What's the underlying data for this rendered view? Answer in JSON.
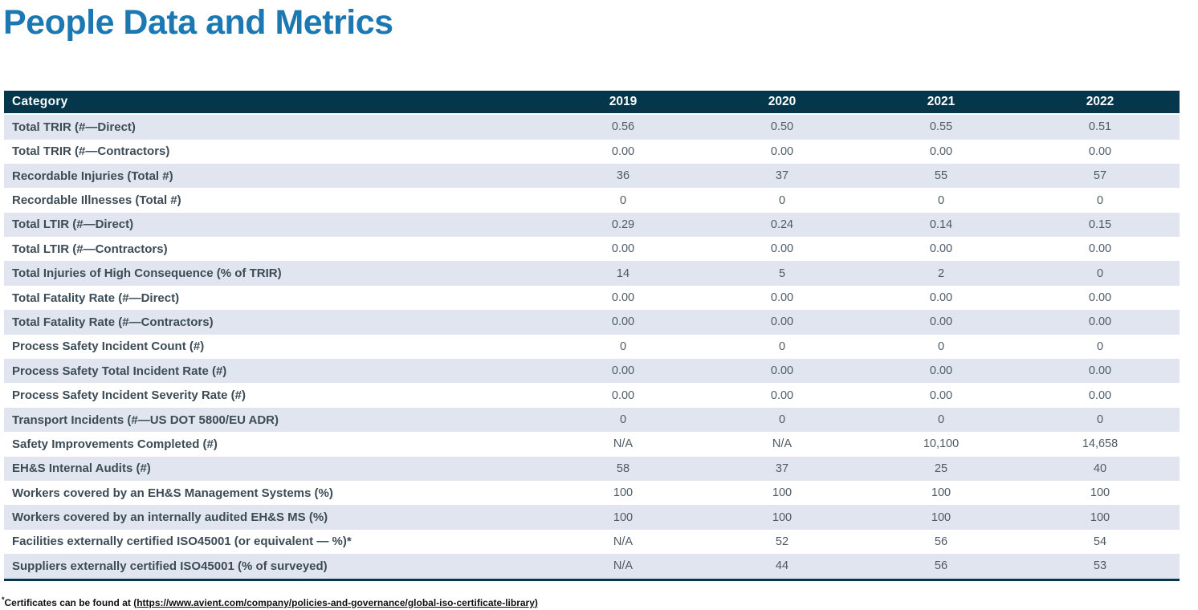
{
  "page": {
    "title": "People Data and Metrics"
  },
  "colors": {
    "title_blue": "#1b78b2",
    "header_bg": "#04364c",
    "row_alt_bg": "#e1e5ef",
    "row_bg": "#ffffff",
    "category_text": "#3c4c57",
    "value_text": "#4e5a64",
    "header_text": "#ffffff",
    "footnote_text": "#111111"
  },
  "table": {
    "columns": [
      "Category",
      "2019",
      "2020",
      "2021",
      "2022"
    ],
    "rows": [
      {
        "category": "Total TRIR (#—Direct)",
        "values": [
          "0.56",
          "0.50",
          "0.55",
          "0.51"
        ]
      },
      {
        "category": "Total TRIR (#—Contractors)",
        "values": [
          "0.00",
          "0.00",
          "0.00",
          "0.00"
        ]
      },
      {
        "category": "Recordable Injuries (Total #)",
        "values": [
          "36",
          "37",
          "55",
          "57"
        ]
      },
      {
        "category": "Recordable Illnesses (Total #)",
        "values": [
          "0",
          "0",
          "0",
          "0"
        ]
      },
      {
        "category": "Total LTIR (#—Direct)",
        "values": [
          "0.29",
          "0.24",
          "0.14",
          "0.15"
        ]
      },
      {
        "category": "Total LTIR (#—Contractors)",
        "values": [
          "0.00",
          "0.00",
          "0.00",
          "0.00"
        ]
      },
      {
        "category": "Total Injuries of High Consequence (% of TRIR)",
        "values": [
          "14",
          "5",
          "2",
          "0"
        ]
      },
      {
        "category": "Total Fatality Rate (#—Direct)",
        "values": [
          "0.00",
          "0.00",
          "0.00",
          "0.00"
        ]
      },
      {
        "category": "Total Fatality Rate (#—Contractors)",
        "values": [
          "0.00",
          "0.00",
          "0.00",
          "0.00"
        ]
      },
      {
        "category": "Process Safety Incident Count (#)",
        "values": [
          "0",
          "0",
          "0",
          "0"
        ]
      },
      {
        "category": "Process Safety Total Incident Rate (#)",
        "values": [
          "0.00",
          "0.00",
          "0.00",
          "0.00"
        ]
      },
      {
        "category": "Process Safety Incident Severity Rate (#)",
        "values": [
          "0.00",
          "0.00",
          "0.00",
          "0.00"
        ]
      },
      {
        "category": "Transport Incidents (#—US DOT 5800/EU ADR)",
        "values": [
          "0",
          "0",
          "0",
          "0"
        ]
      },
      {
        "category": "Safety Improvements Completed (#)",
        "values": [
          "N/A",
          "N/A",
          "10,100",
          "14,658"
        ]
      },
      {
        "category": "EH&S Internal Audits (#)",
        "values": [
          "58",
          "37",
          "25",
          "40"
        ]
      },
      {
        "category": "Workers covered by an EH&S Management Systems (%)",
        "values": [
          "100",
          "100",
          "100",
          "100"
        ]
      },
      {
        "category": "Workers covered by an internally audited EH&S MS (%)",
        "values": [
          "100",
          "100",
          "100",
          "100"
        ]
      },
      {
        "category": "Facilities externally certified ISO45001 (or equivalent — %)*",
        "values": [
          "N/A",
          "52",
          "56",
          "54"
        ]
      },
      {
        "category": "Suppliers externally certified ISO45001 (% of surveyed)",
        "values": [
          "N/A",
          "44",
          "56",
          "53"
        ]
      }
    ]
  },
  "footnote": {
    "star": "*",
    "prefix": "Certificates can be found at ",
    "link": "(https://www.avient.com/company/policies-and-governance/global-iso-certificate-library)"
  }
}
